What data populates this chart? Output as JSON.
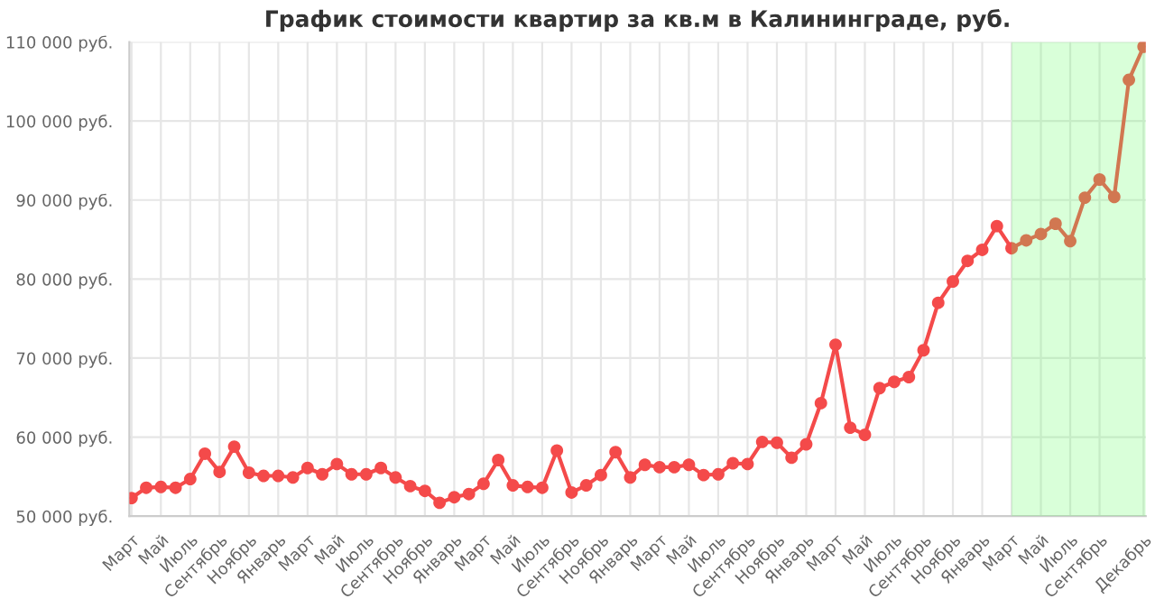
{
  "chart_data": {
    "type": "line",
    "title": "График стоимости квартир за кв.м в Калининграде, руб.",
    "categories": [
      "Март",
      null,
      "Май",
      null,
      "Июль",
      null,
      "Сентябрь",
      null,
      "Ноябрь",
      null,
      "Январь",
      null,
      "Март",
      null,
      "Май",
      null,
      "Июль",
      null,
      "Сентябрь",
      null,
      "Ноябрь",
      null,
      "Январь",
      null,
      "Март",
      null,
      "Май",
      null,
      "Июль",
      null,
      "Сентябрь",
      null,
      "Ноябрь",
      null,
      "Январь",
      null,
      "Март",
      null,
      "Май",
      null,
      "Июль",
      null,
      "Сентябрь",
      null,
      "Ноябрь",
      null,
      "Январь",
      null,
      "Март",
      null,
      "Май",
      null,
      "Июль",
      null,
      "Сентябрь",
      null,
      "Ноябрь",
      null,
      "Январь",
      null,
      "Март",
      null,
      "Май",
      null,
      "Июль",
      null,
      "Сентябрь",
      null,
      null,
      "Декабрь"
    ],
    "series": [
      {
        "color": "#f44a4a",
        "values": [
          52300,
          53600,
          53700,
          53600,
          54700,
          57900,
          55600,
          58800,
          55500,
          55100,
          55100,
          54900,
          56100,
          55300,
          56600,
          55300,
          55300,
          56100,
          54900,
          53800,
          53200,
          51700,
          52400,
          52800,
          54100,
          57100,
          53900,
          53700,
          53600,
          58300,
          53000,
          53900,
          55200,
          58100,
          54900,
          56500,
          56200,
          56200,
          56500,
          55200,
          55300,
          56700,
          56600,
          59400,
          59300,
          57400,
          59100,
          64300,
          71700,
          61200,
          60300,
          66200,
          67000,
          67600,
          71000,
          77000,
          79700,
          82300,
          83700,
          86700,
          83900,
          84900,
          85700,
          87000,
          84800,
          90300,
          92600,
          90400,
          105200,
          109400
        ]
      }
    ],
    "ylim": [
      50000,
      110000
    ],
    "yticks": [
      {
        "value": 50000,
        "label": "50 000 руб."
      },
      {
        "value": 60000,
        "label": "60 000 руб."
      },
      {
        "value": 70000,
        "label": "70 000 руб."
      },
      {
        "value": 80000,
        "label": "80 000 руб."
      },
      {
        "value": 90000,
        "label": "90 000 руб."
      },
      {
        "value": 100000,
        "label": "100 000 руб."
      },
      {
        "value": 110000,
        "label": "110 000 руб."
      }
    ],
    "grid": true,
    "marker": "circle",
    "line_style": "solid",
    "legend": false
  }
}
